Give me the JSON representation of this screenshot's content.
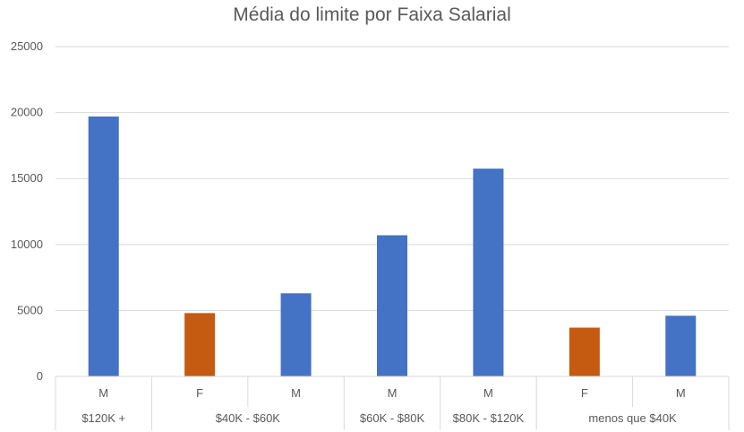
{
  "chart_data": {
    "type": "bar",
    "title": "Média do limite por Faixa Salarial",
    "xlabel": "",
    "ylabel": "",
    "ylim": [
      0,
      25000
    ],
    "yticks": [
      0,
      5000,
      10000,
      15000,
      20000,
      25000
    ],
    "grid": true,
    "legend": "none",
    "categories": [
      {
        "group": "$120K +",
        "sub": "M",
        "value": 19700,
        "color": "#4472C4"
      },
      {
        "group": "$40K - $60K",
        "sub": "F",
        "value": 4800,
        "color": "#C55A11"
      },
      {
        "group": "$40K - $60K",
        "sub": "M",
        "value": 6300,
        "color": "#4472C4"
      },
      {
        "group": "$60K - $80K",
        "sub": "M",
        "value": 10700,
        "color": "#4472C4"
      },
      {
        "group": "$80K - $120K",
        "sub": "M",
        "value": 15750,
        "color": "#4472C4"
      },
      {
        "group": "menos que $40K",
        "sub": "F",
        "value": 3700,
        "color": "#C55A11"
      },
      {
        "group": "menos que $40K",
        "sub": "M",
        "value": 4600,
        "color": "#4472C4"
      }
    ],
    "groups": [
      "$120K +",
      "$40K - $60K",
      "$60K - $80K",
      "$80K - $120K",
      "menos que $40K"
    ]
  }
}
